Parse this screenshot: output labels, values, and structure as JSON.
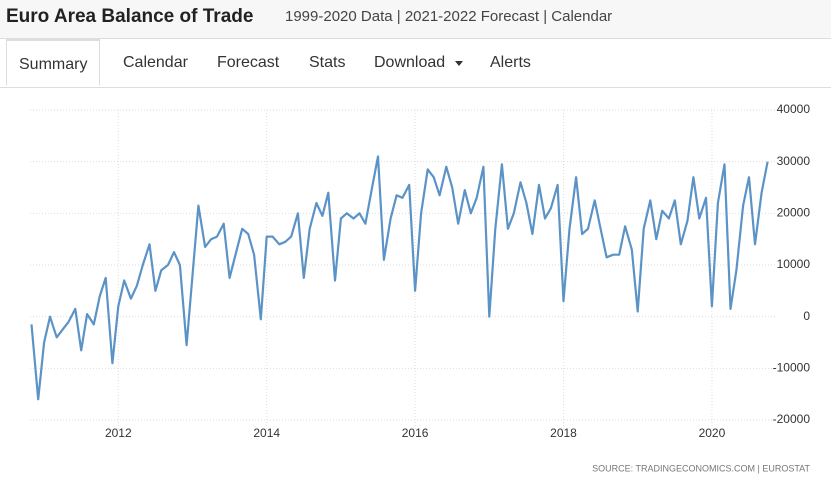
{
  "header": {
    "title": "Euro Area Balance of Trade",
    "subtitle": "1999-2020 Data | 2021-2022 Forecast | Calendar"
  },
  "tabs": [
    "Summary",
    "Calendar",
    "Forecast",
    "Stats",
    "Download",
    "Alerts"
  ],
  "chart_data": {
    "type": "line",
    "x": [
      2010.83,
      2010.92,
      2011,
      2011.08,
      2011.17,
      2011.25,
      2011.33,
      2011.42,
      2011.5,
      2011.58,
      2011.67,
      2011.75,
      2011.83,
      2011.92,
      2012,
      2012.08,
      2012.17,
      2012.25,
      2012.33,
      2012.42,
      2012.5,
      2012.58,
      2012.67,
      2012.75,
      2012.83,
      2012.92,
      2013,
      2013.08,
      2013.17,
      2013.25,
      2013.33,
      2013.42,
      2013.5,
      2013.58,
      2013.67,
      2013.75,
      2013.83,
      2013.92,
      2014,
      2014.08,
      2014.17,
      2014.25,
      2014.33,
      2014.42,
      2014.5,
      2014.58,
      2014.67,
      2014.75,
      2014.83,
      2014.92,
      2015,
      2015.08,
      2015.17,
      2015.25,
      2015.33,
      2015.42,
      2015.5,
      2015.58,
      2015.67,
      2015.75,
      2015.83,
      2015.92,
      2016,
      2016.08,
      2016.17,
      2016.25,
      2016.33,
      2016.42,
      2016.5,
      2016.58,
      2016.67,
      2016.75,
      2016.83,
      2016.92,
      2017,
      2017.08,
      2017.17,
      2017.25,
      2017.33,
      2017.42,
      2017.5,
      2017.58,
      2017.67,
      2017.75,
      2017.83,
      2017.92,
      2018,
      2018.08,
      2018.17,
      2018.25,
      2018.33,
      2018.42,
      2018.5,
      2018.58,
      2018.67,
      2018.75,
      2018.83,
      2018.92,
      2019,
      2019.08,
      2019.17,
      2019.25,
      2019.33,
      2019.42,
      2019.5,
      2019.58,
      2019.67,
      2019.75,
      2019.83,
      2019.92,
      2020,
      2020.08,
      2020.17,
      2020.25,
      2020.33,
      2020.42,
      2020.5,
      2020.58,
      2020.67,
      2020.75
    ],
    "series": [
      {
        "color": "#5b93c7",
        "values": [
          -1500,
          -16000,
          -5000,
          0,
          -4000,
          -2500,
          -1000,
          1500,
          -6500,
          500,
          -1500,
          4000,
          7500,
          -9000,
          2000,
          7000,
          3500,
          6000,
          10000,
          14000,
          5000,
          9000,
          10000,
          12500,
          10000,
          -5500,
          8000,
          21500,
          13500,
          15000,
          15500,
          18000,
          7500,
          12000,
          17000,
          16000,
          12000,
          -500,
          15500,
          15500,
          14000,
          14500,
          15500,
          20000,
          7500,
          17000,
          22000,
          19500,
          24000,
          7000,
          19000,
          20000,
          19000,
          20000,
          18000,
          25000,
          31000,
          11000,
          19000,
          23500,
          23000,
          25500,
          5000,
          20000,
          28500,
          27000,
          23500,
          29000,
          25000,
          18000,
          24500,
          20000,
          23000,
          29000,
          0,
          17000,
          29500,
          17000,
          20000,
          26000,
          22000,
          16000,
          25500,
          19000,
          21000,
          25500,
          3000,
          17000,
          27000,
          16000,
          17000,
          22500,
          17000,
          11500,
          12000,
          12000,
          17500,
          13000,
          1000,
          17000,
          22500,
          15000,
          20500,
          19000,
          22500,
          14000,
          18500,
          27000,
          19000,
          23000,
          2000,
          22000,
          29500,
          1500,
          9000,
          21500,
          27000,
          14000,
          24000,
          30000
        ]
      }
    ],
    "xlim": [
      2010.81,
      2020.85
    ],
    "xticks": [
      2012,
      2014,
      2016,
      2018,
      2020
    ],
    "ylim": [
      -20000,
      40000
    ],
    "yticks": [
      40000,
      30000,
      20000,
      10000,
      0,
      -10000,
      -20000
    ],
    "grid": true
  },
  "source": "SOURCE: TRADINGECONOMICS.COM | EUROSTAT"
}
